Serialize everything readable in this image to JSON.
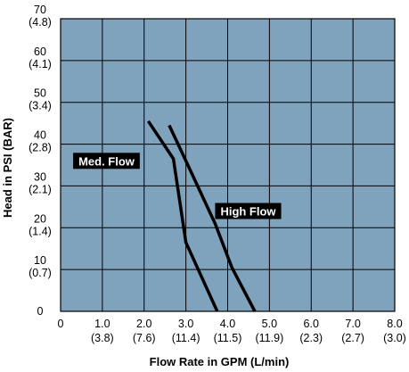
{
  "colors": {
    "plot_background": "#7fa3bd",
    "grid": "#000000",
    "series_line": "#000000",
    "label_background": "#000000",
    "label_text": "#ffffff"
  },
  "chart_data": {
    "type": "line",
    "title": "",
    "xlabel": "Flow Rate in GPM (L/min)",
    "ylabel": "Head in PSI (BAR)",
    "xlim": [
      0,
      8
    ],
    "ylim": [
      0,
      70
    ],
    "grid": true,
    "legend": "none (series labelled inline on the plot)",
    "x_ticks": [
      {
        "value": 0,
        "label": "0",
        "sub": ""
      },
      {
        "value": 1,
        "label": "1.0",
        "sub": "(3.8)"
      },
      {
        "value": 2,
        "label": "2.0",
        "sub": "(7.6)"
      },
      {
        "value": 3,
        "label": "3.0",
        "sub": "(11.4)"
      },
      {
        "value": 4,
        "label": "4.0",
        "sub": "(11.5)"
      },
      {
        "value": 5,
        "label": "5.0",
        "sub": "(11.9)"
      },
      {
        "value": 6,
        "label": "6.0",
        "sub": "(2.3)"
      },
      {
        "value": 7,
        "label": "7.0",
        "sub": "(2.7)"
      },
      {
        "value": 8,
        "label": "8.0",
        "sub": "(3.0)"
      }
    ],
    "y_ticks": [
      {
        "value": 0,
        "label": "0",
        "sub": ""
      },
      {
        "value": 10,
        "label": "10",
        "sub": "(0.7)"
      },
      {
        "value": 20,
        "label": "20",
        "sub": "(1.4)"
      },
      {
        "value": 30,
        "label": "30",
        "sub": "(2.1)"
      },
      {
        "value": 40,
        "label": "40",
        "sub": "(2.8)"
      },
      {
        "value": 50,
        "label": "50",
        "sub": "(3.4)"
      },
      {
        "value": 60,
        "label": "60",
        "sub": "(4.1)"
      },
      {
        "value": 70,
        "label": "70",
        "sub": "(4.8)"
      }
    ],
    "series": [
      {
        "name": "Med. Flow",
        "points": [
          [
            2.1,
            45.5
          ],
          [
            2.7,
            36.5
          ],
          [
            3.0,
            16.5
          ],
          [
            3.75,
            0
          ]
        ]
      },
      {
        "name": "High Flow",
        "points": [
          [
            2.6,
            44.5
          ],
          [
            3.0,
            36
          ],
          [
            3.7,
            21
          ],
          [
            4.1,
            10.5
          ],
          [
            4.65,
            0
          ]
        ]
      }
    ],
    "series_label_anchor": [
      {
        "series": "Med. Flow",
        "x": 0.3,
        "y": 36
      },
      {
        "series": "High Flow",
        "x": 3.7,
        "y": 24
      }
    ]
  }
}
